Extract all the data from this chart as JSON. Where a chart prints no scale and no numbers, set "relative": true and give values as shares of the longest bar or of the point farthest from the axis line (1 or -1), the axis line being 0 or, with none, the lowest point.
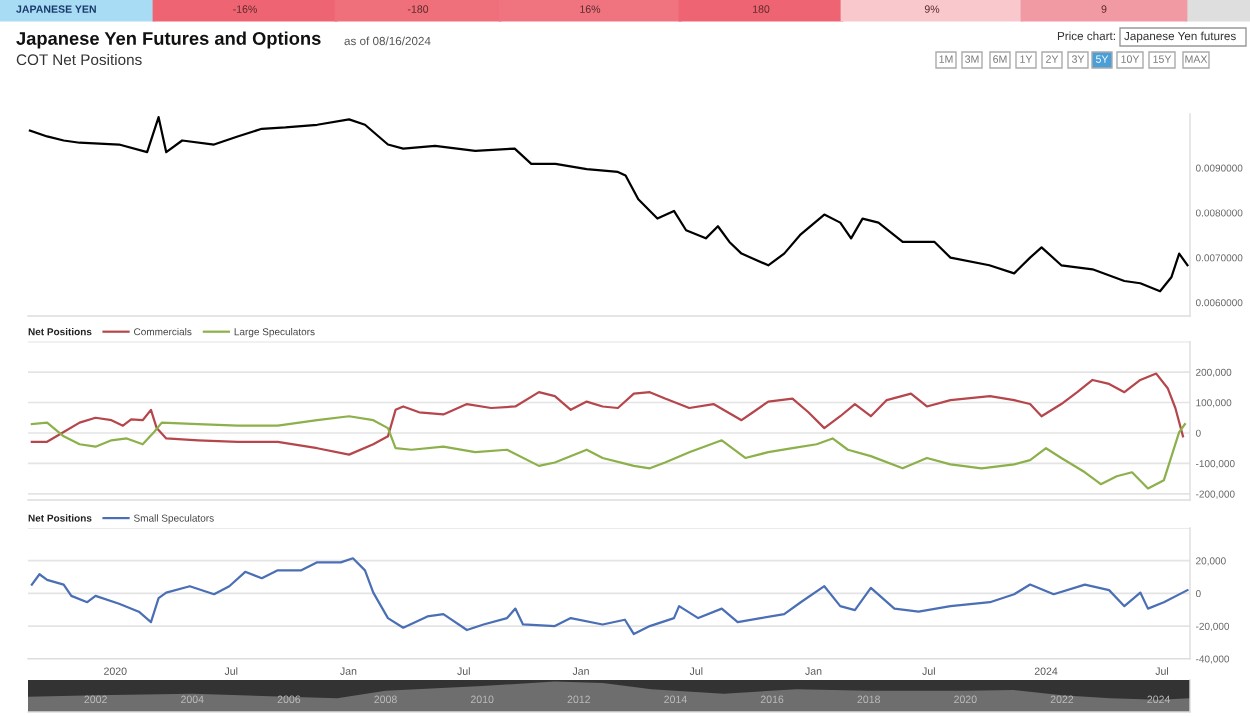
{
  "chart_data": [
    {
      "type": "line",
      "title": "Japanese Yen Futures and Options",
      "subtitle": "COT Net Positions",
      "annotations": [
        "as of 08/16/2024",
        "JAPANESE YEN",
        "-16%",
        "-180",
        "16%",
        "180",
        "9%",
        "9",
        "Price chart:",
        "Japanese Yen futures",
        "1M",
        "3M",
        "6M",
        "1Y",
        "2Y",
        "3Y",
        "5Y",
        "10Y",
        "15Y",
        "MAX"
      ],
      "series": [
        {
          "color": "#000000",
          "x": [
            "2019-08-20",
            "2019-09-16",
            "2019-10-12",
            "2019-11-06",
            "2020-01-07",
            "2020-02-20",
            "2020-03-09",
            "2020-03-21",
            "2020-04-15",
            "2020-06-04",
            "2020-07-11",
            "2020-08-18",
            "2020-09-24",
            "2020-11-13",
            "2021-01-02",
            "2021-01-27",
            "2021-03-04",
            "2021-03-28",
            "2021-05-17",
            "2021-07-19",
            "2021-09-19",
            "2021-10-15",
            "2021-11-22",
            "2022-01-10",
            "2022-02-28",
            "2022-03-12",
            "2022-04-01",
            "2022-05-01",
            "2022-05-27",
            "2022-06-15",
            "2022-07-16",
            "2022-08-04",
            "2022-08-22",
            "2022-09-10",
            "2022-10-22",
            "2022-11-16",
            "2022-12-12",
            "2023-01-18",
            "2023-02-12",
            "2023-03-01",
            "2023-03-19",
            "2023-04-13",
            "2023-05-21",
            "2023-07-10",
            "2023-08-04",
            "2023-10-04",
            "2023-11-12",
            "2023-12-07",
            "2023-12-25",
            "2024-01-25",
            "2024-03-14",
            "2024-05-03",
            "2024-05-28",
            "2024-06-28",
            "2024-07-16",
            "2024-07-28",
            "2024-08-10"
          ],
          "values": [
            0.00983,
            0.0097,
            0.00961,
            0.00956,
            0.00952,
            0.00935,
            0.01013,
            0.00935,
            0.00961,
            0.00952,
            0.0097,
            0.00987,
            0.0099,
            0.00996,
            0.01008,
            0.00996,
            0.00952,
            0.00943,
            0.00949,
            0.00938,
            0.00943,
            0.00909,
            0.00909,
            0.00897,
            0.00891,
            0.00883,
            0.0083,
            0.00787,
            0.00804,
            0.00761,
            0.00743,
            0.0077,
            0.00735,
            0.00709,
            0.00683,
            0.00709,
            0.00752,
            0.00796,
            0.00778,
            0.00743,
            0.00787,
            0.00778,
            0.00735,
            0.00735,
            0.007,
            0.00683,
            0.00665,
            0.007,
            0.00723,
            0.00683,
            0.00674,
            0.00648,
            0.00643,
            0.00625,
            0.00657,
            0.00709,
            0.00683
          ]
        }
      ],
      "xlim": [
        "2019-08-17",
        "2024-08-14"
      ],
      "ylim": [
        0.0057,
        0.0102
      ],
      "yticks": [
        {
          "value": 0.006,
          "label": "0.0060000"
        },
        {
          "value": 0.007,
          "label": "0.0070000"
        },
        {
          "value": 0.008,
          "label": "0.0080000"
        },
        {
          "value": 0.009,
          "label": "0.0090000"
        }
      ],
      "tick_labels": "y",
      "grid": false
    },
    {
      "type": "line",
      "legend_title": "Net Positions",
      "legend": "top left",
      "grid": "y",
      "tick_labels": "y",
      "series": [
        {
          "name": "Commercials",
          "color": "#b5464b",
          "x": [
            "2019-08-23",
            "2019-09-16",
            "2019-10-12",
            "2019-11-06",
            "2019-12-01",
            "2019-12-26",
            "2020-01-13",
            "2020-01-26",
            "2020-02-13",
            "2020-02-26",
            "2020-03-06",
            "2020-03-21",
            "2020-05-10",
            "2020-07-11",
            "2020-09-12",
            "2020-11-13",
            "2021-01-02",
            "2021-02-09",
            "2021-03-04",
            "2021-03-16",
            "2021-03-28",
            "2021-04-22",
            "2021-05-30",
            "2021-07-06",
            "2021-08-13",
            "2021-09-20",
            "2021-10-27",
            "2021-11-21",
            "2021-12-16",
            "2022-01-10",
            "2022-02-04",
            "2022-02-28",
            "2022-03-25",
            "2022-04-19",
            "2022-05-13",
            "2022-06-20",
            "2022-07-28",
            "2022-09-10",
            "2022-09-28",
            "2022-10-22",
            "2022-11-29",
            "2022-12-24",
            "2023-01-18",
            "2023-02-12",
            "2023-03-07",
            "2023-04-01",
            "2023-04-26",
            "2023-06-03",
            "2023-06-28",
            "2023-08-04",
            "2023-10-05",
            "2023-11-12",
            "2023-12-07",
            "2023-12-25",
            "2024-01-25",
            "2024-02-19",
            "2024-03-14",
            "2024-04-09",
            "2024-05-03",
            "2024-05-28",
            "2024-06-22",
            "2024-07-10",
            "2024-07-22",
            "2024-08-03"
          ],
          "values": [
            -29000,
            -29000,
            3000,
            34000,
            50000,
            42000,
            24000,
            45000,
            42000,
            76000,
            16000,
            -18000,
            -24000,
            -29000,
            -29000,
            -50000,
            -71000,
            -37000,
            -11000,
            76000,
            87000,
            68000,
            61000,
            95000,
            82000,
            87000,
            134000,
            121000,
            76000,
            103000,
            87000,
            82000,
            129000,
            134000,
            113000,
            82000,
            95000,
            42000,
            68000,
            103000,
            113000,
            68000,
            16000,
            55000,
            95000,
            55000,
            108000,
            129000,
            87000,
            108000,
            121000,
            108000,
            95000,
            55000,
            95000,
            134000,
            174000,
            161000,
            134000,
            174000,
            195000,
            147000,
            82000,
            -11000
          ]
        },
        {
          "name": "Large Speculators",
          "color": "#8cb04a",
          "x": [
            "2019-08-23",
            "2019-09-16",
            "2019-10-12",
            "2019-11-06",
            "2019-12-01",
            "2019-12-26",
            "2020-01-19",
            "2020-02-13",
            "2020-03-02",
            "2020-03-14",
            "2020-05-10",
            "2020-07-11",
            "2020-09-12",
            "2020-11-13",
            "2021-01-02",
            "2021-02-09",
            "2021-03-04",
            "2021-03-16",
            "2021-04-10",
            "2021-05-30",
            "2021-07-19",
            "2021-09-07",
            "2021-10-27",
            "2021-11-21",
            "2022-01-10",
            "2022-02-04",
            "2022-03-25",
            "2022-04-19",
            "2022-05-13",
            "2022-06-20",
            "2022-08-10",
            "2022-09-16",
            "2022-10-22",
            "2022-11-29",
            "2023-01-06",
            "2023-01-31",
            "2023-02-24",
            "2023-04-01",
            "2023-05-21",
            "2023-06-28",
            "2023-08-04",
            "2023-09-22",
            "2023-11-12",
            "2023-12-07",
            "2024-01-01",
            "2024-01-25",
            "2024-03-02",
            "2024-03-27",
            "2024-04-21",
            "2024-05-15",
            "2024-06-09",
            "2024-07-04",
            "2024-07-16",
            "2024-07-28",
            "2024-08-06"
          ],
          "values": [
            29000,
            34000,
            -11000,
            -37000,
            -45000,
            -24000,
            -18000,
            -37000,
            3000,
            34000,
            29000,
            24000,
            24000,
            42000,
            55000,
            42000,
            16000,
            -50000,
            -55000,
            -45000,
            -63000,
            -55000,
            -108000,
            -97000,
            -55000,
            -82000,
            -108000,
            -116000,
            -97000,
            -63000,
            -24000,
            -82000,
            -63000,
            -50000,
            -37000,
            -18000,
            -55000,
            -76000,
            -116000,
            -82000,
            -103000,
            -116000,
            -103000,
            -89000,
            -50000,
            -82000,
            -129000,
            -168000,
            -142000,
            -129000,
            -182000,
            -155000,
            -76000,
            3000,
            29000
          ]
        }
      ],
      "xlim": [
        "2019-08-17",
        "2024-08-14"
      ],
      "ylim": [
        -220000,
        300000
      ],
      "yticks": [
        {
          "value": -200000,
          "label": "-200,000"
        },
        {
          "value": -100000,
          "label": "-100,000"
        },
        0,
        {
          "value": 100000,
          "label": "100,000"
        },
        {
          "value": 200000,
          "label": "200,000"
        },
        {
          "value": 300000,
          "label": null
        }
      ]
    },
    {
      "type": "line",
      "legend_title": "Net Positions",
      "legend": "top left",
      "grid": "y",
      "series": [
        {
          "name": "Small Speculators",
          "color": "#4a6fb5",
          "x": [
            "2019-08-23",
            "2019-09-04",
            "2019-09-16",
            "2019-10-12",
            "2019-10-24",
            "2019-11-18",
            "2019-12-01",
            "2020-01-07",
            "2020-02-07",
            "2020-02-26",
            "2020-03-09",
            "2020-03-21",
            "2020-04-27",
            "2020-06-04",
            "2020-06-28",
            "2020-07-23",
            "2020-08-18",
            "2020-09-12",
            "2020-10-19",
            "2020-11-13",
            "2020-12-20",
            "2021-01-08",
            "2021-01-27",
            "2021-02-09",
            "2021-03-04",
            "2021-03-28",
            "2021-05-05",
            "2021-05-30",
            "2021-07-06",
            "2021-08-01",
            "2021-09-07",
            "2021-09-20",
            "2021-10-02",
            "2021-11-21",
            "2021-12-16",
            "2022-02-04",
            "2022-03-11",
            "2022-03-25",
            "2022-04-19",
            "2022-05-27",
            "2022-06-04",
            "2022-07-04",
            "2022-08-10",
            "2022-09-04",
            "2022-10-10",
            "2022-11-16",
            "2022-12-12",
            "2023-01-18",
            "2023-02-12",
            "2023-03-07",
            "2023-04-01",
            "2023-05-08",
            "2023-06-15",
            "2023-08-04",
            "2023-10-05",
            "2023-11-12",
            "2023-12-07",
            "2024-01-13",
            "2024-03-02",
            "2024-04-09",
            "2024-05-03",
            "2024-05-28",
            "2024-06-09",
            "2024-07-04",
            "2024-08-10"
          ],
          "values": [
            5400,
            11700,
            8300,
            5400,
            -1500,
            -5400,
            -1500,
            -6300,
            -11200,
            -17600,
            -2900,
            500,
            4400,
            -500,
            4400,
            13200,
            9300,
            14100,
            14100,
            19000,
            19000,
            21500,
            14100,
            500,
            -15100,
            -21000,
            -14100,
            -12700,
            -22400,
            -19000,
            -15100,
            -9300,
            -19000,
            -20000,
            -15100,
            -19000,
            -16100,
            -24900,
            -20000,
            -15100,
            -7800,
            -15100,
            -9300,
            -17600,
            -15100,
            -12700,
            -5400,
            4400,
            -7800,
            -10200,
            3400,
            -9300,
            -11200,
            -7800,
            -5400,
            -500,
            5400,
            -500,
            5400,
            2000,
            -7800,
            500,
            -9300,
            -5400,
            2000
          ]
        }
      ],
      "xlim": [
        "2019-08-17",
        "2024-08-14"
      ],
      "ylim": [
        -40000,
        40000
      ],
      "xticks": [
        {
          "value": "2020-01-01",
          "label": "2020"
        },
        {
          "value": "2020-07-01",
          "label": "Jul"
        },
        {
          "value": "2021-01-01",
          "label": "Jan"
        },
        {
          "value": "2021-07-01",
          "label": "Jul"
        },
        {
          "value": "2022-01-01",
          "label": "Jan"
        },
        {
          "value": "2022-07-01",
          "label": "Jul"
        },
        {
          "value": "2023-01-01",
          "label": "Jan"
        },
        {
          "value": "2023-07-01",
          "label": "Jul"
        },
        {
          "value": "2024-01-01",
          "label": "2024"
        },
        {
          "value": "2024-07-01",
          "label": "Jul"
        }
      ],
      "yticks": [
        {
          "value": -40000,
          "label": "-40,000"
        },
        {
          "value": -20000,
          "label": "-20,000"
        },
        0,
        {
          "value": 20000,
          "label": "20,000"
        },
        {
          "value": 40000,
          "label": null
        }
      ]
    },
    {
      "type": "area",
      "relative": true,
      "tick_labels": "x",
      "series": [
        {
          "color": "#6e6e6e",
          "x": [
            2000.6,
            2002,
            2004,
            2005,
            2007,
            2008,
            2010,
            2011.5,
            2012.5,
            2013.5,
            2015,
            2016.5,
            2018,
            2020,
            2021,
            2022,
            2023,
            2024,
            2024.65
          ],
          "values": [
            0.5,
            0.55,
            0.6,
            0.55,
            0.45,
            0.7,
            0.85,
            1,
            0.95,
            0.75,
            0.6,
            0.75,
            0.7,
            0.7,
            0.72,
            0.55,
            0.45,
            0.4,
            0.45
          ]
        }
      ],
      "xlim": [
        2000.6,
        2024.65
      ],
      "xticks": [
        2002,
        2004,
        2006,
        2008,
        2010,
        2012,
        2014,
        2016,
        2018,
        2020,
        2022,
        2024
      ]
    }
  ]
}
